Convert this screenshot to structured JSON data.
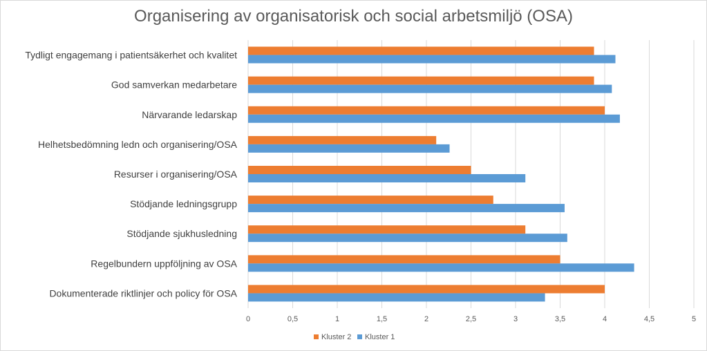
{
  "chart_data": {
    "type": "bar",
    "orientation": "horizontal",
    "title": "Organisering av organisatorisk och social arbetsmiljö (OSA)",
    "categories": [
      "Tydligt engagemang i patientsäkerhet och kvalitet",
      "God samverkan medarbetare",
      "Närvarande ledarskap",
      "Helhetsbedömning ledn och organisering/OSA",
      "Resurser i organisering/OSA",
      "Stödjande ledningsgrupp",
      "Stödjande sjukhusledning ",
      "Regelbundern uppföljning av OSA",
      "Dokumenterade riktlinjer och policy för OSA"
    ],
    "series": [
      {
        "name": "Kluster 2",
        "color": "#ed7d31",
        "values": [
          3.88,
          3.88,
          4.0,
          2.11,
          2.5,
          2.75,
          3.11,
          3.5,
          4.0
        ]
      },
      {
        "name": "Kluster 1",
        "color": "#5b9bd5",
        "values": [
          4.12,
          4.08,
          4.17,
          2.26,
          3.11,
          3.55,
          3.58,
          4.33,
          3.33
        ]
      }
    ],
    "xlim": [
      0,
      5
    ],
    "xticks": [
      "0",
      "0,5",
      "1",
      "1,5",
      "2",
      "2,5",
      "3",
      "3,5",
      "4",
      "4,5",
      "5"
    ],
    "grid": "vertical",
    "legend": "bottom"
  }
}
